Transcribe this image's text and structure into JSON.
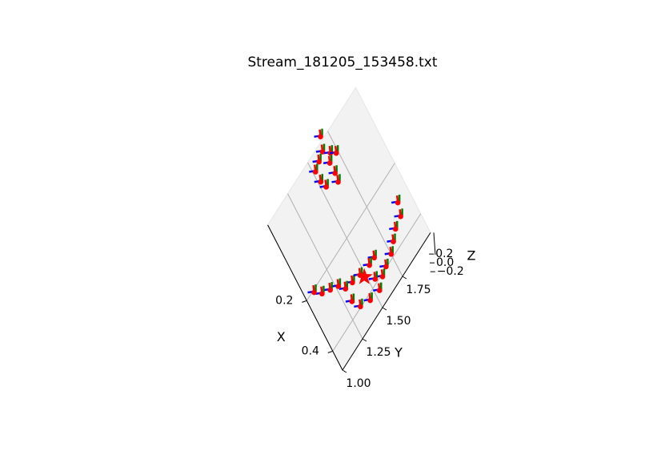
{
  "chart_data": {
    "type": "scatter3d",
    "title": "Stream_181205_153458.txt",
    "x_label": "X",
    "y_label": "Y",
    "z_label": "Z",
    "xlim": [
      -0.1,
      0.475
    ],
    "ylim": [
      1.0,
      2.1
    ],
    "zlim": [
      -0.25,
      0.25
    ],
    "xticks": [
      0.2,
      0.4
    ],
    "yticks": [
      {
        "value": 1.0,
        "label": "1.00"
      },
      1.25,
      {
        "value": 1.5,
        "label": "1.50"
      },
      1.75
    ],
    "zticks": [
      0.2,
      {
        "value": 0,
        "label": "0.0"
      },
      {
        "value": -0.2,
        "label": "−0.2"
      }
    ],
    "grid": true,
    "color": "#ff0000",
    "points": {
      "x": [
        -0.12,
        -0.08,
        -0.07,
        -0.05,
        -0.03,
        -0.06,
        -0.02,
        0.01,
        -0.03,
        0.01,
        0.04,
        0.29,
        0.33,
        0.34,
        0.36,
        0.38,
        0.39,
        0.4,
        0.33,
        0.33,
        0.38,
        0.42,
        0.41,
        0.39,
        0.35,
        0.31,
        0.3,
        0.27,
        0.25,
        0.23,
        0.2,
        0.32
      ],
      "y": [
        1.69,
        1.65,
        1.59,
        1.7,
        1.74,
        1.53,
        1.53,
        1.55,
        1.66,
        1.66,
        1.65,
        1.99,
        1.96,
        1.88,
        1.82,
        1.76,
        1.68,
        1.62,
        1.63,
        1.57,
        1.56,
        1.55,
        1.45,
        1.36,
        1.32,
        1.39,
        1.32,
        1.28,
        1.21,
        1.14,
        1.09,
        1.47
      ],
      "z": [
        0.2,
        0.2,
        0.2,
        0.2,
        0.2,
        0.2,
        0.2,
        0.2,
        0.2,
        0.2,
        0.2,
        0.2,
        0.2,
        0.2,
        0.2,
        0.2,
        0.2,
        0.2,
        0.2,
        0.2,
        0.2,
        0.2,
        0.2,
        0.2,
        0.2,
        0.2,
        0.2,
        0.2,
        0.2,
        0.2,
        0.2,
        0.2
      ]
    },
    "star": {
      "x": 0.34,
      "y": 1.49,
      "z": 0.2
    }
  }
}
